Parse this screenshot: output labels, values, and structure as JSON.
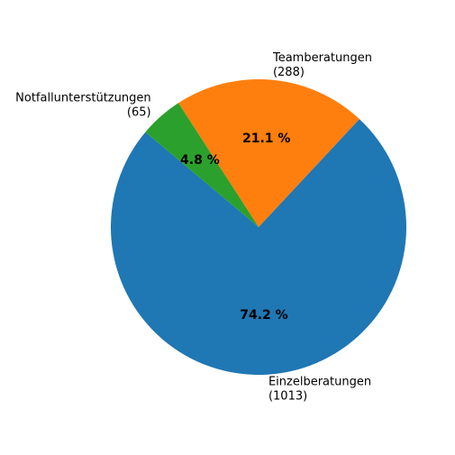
{
  "chart_data": {
    "type": "pie",
    "categories": [
      "Einzelberatungen",
      "Teamberatungen",
      "Notfallunterstützungen"
    ],
    "values": [
      1013,
      288,
      65
    ],
    "value_labels": [
      "(1013)",
      "(288)",
      "(65)"
    ],
    "percent_labels": [
      "74.2 %",
      "21.1 %",
      "4.8 %"
    ],
    "colors": [
      "#1f77b4",
      "#ff7f0e",
      "#2ca02c"
    ]
  }
}
